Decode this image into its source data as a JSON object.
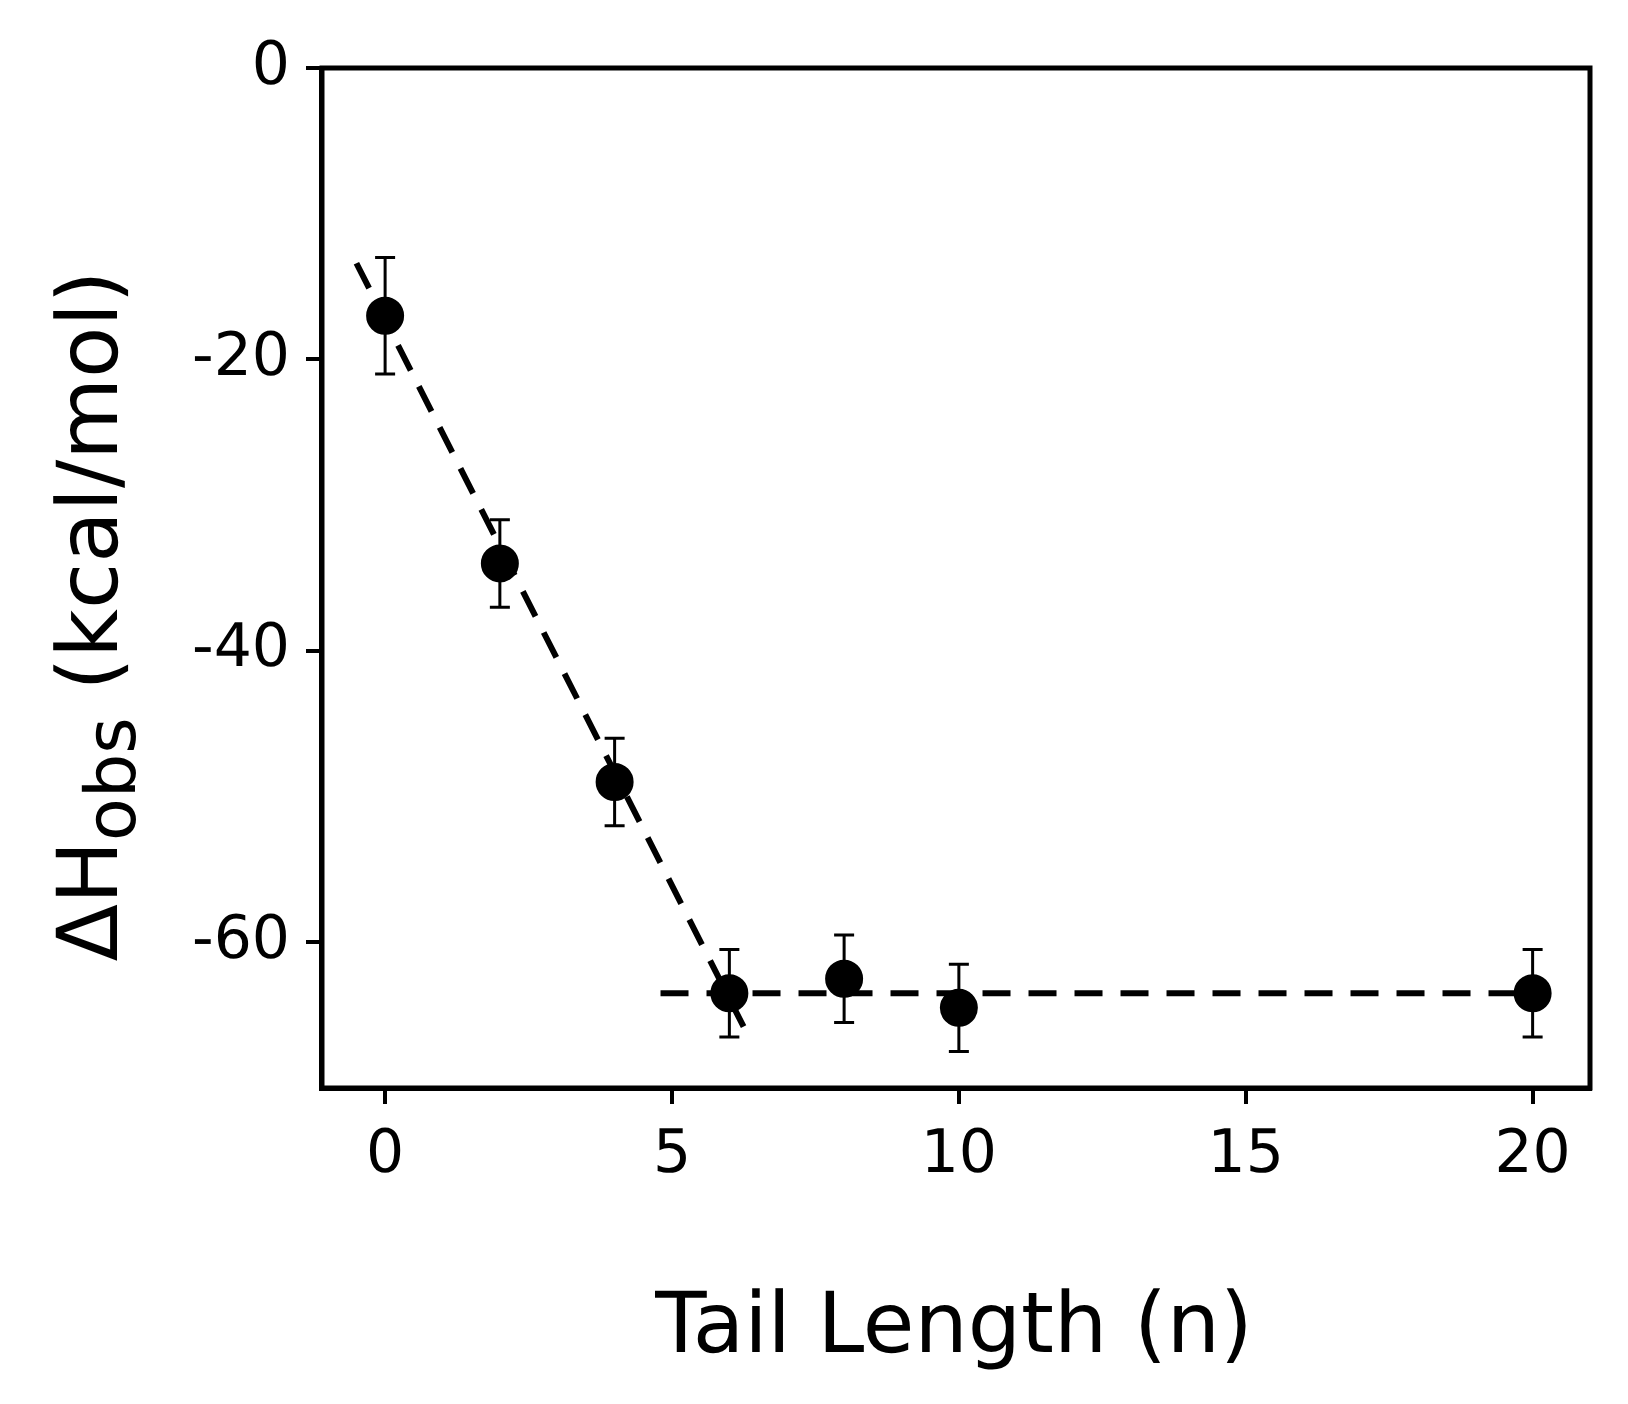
{
  "chart_data": {
    "type": "scatter",
    "xlabel": "Tail Length (n)",
    "ylabel": "ΔH$_{obs}$ (kcal/mol)",
    "xlim": [
      -1.1,
      21
    ],
    "xticks": [
      0,
      5,
      10,
      15,
      20
    ],
    "ylim": [
      -70,
      0
    ],
    "yticks": [
      0,
      -20,
      -40,
      -60
    ],
    "grid": false,
    "legend": false,
    "marker": "circle",
    "series": [
      {
        "type": "scatter",
        "color": "#000000",
        "x": [
          0,
          2,
          4,
          6,
          8,
          10,
          20
        ],
        "values": [
          -17,
          -34,
          -49,
          -63.5,
          -62.5,
          -64.5,
          -63.5
        ],
        "errors": [
          4,
          3,
          3,
          3,
          3,
          3,
          3
        ]
      },
      {
        "type": "line",
        "color": "#000000",
        "line_style": "dashed",
        "marker": "none",
        "x": [
          -0.5,
          6.3
        ],
        "values": [
          -13.4,
          -66.2
        ]
      },
      {
        "type": "line",
        "color": "#000000",
        "line_style": "dashed",
        "marker": "none",
        "x": [
          4.8,
          20.3
        ],
        "values": [
          -63.5,
          -63.5
        ]
      }
    ]
  }
}
